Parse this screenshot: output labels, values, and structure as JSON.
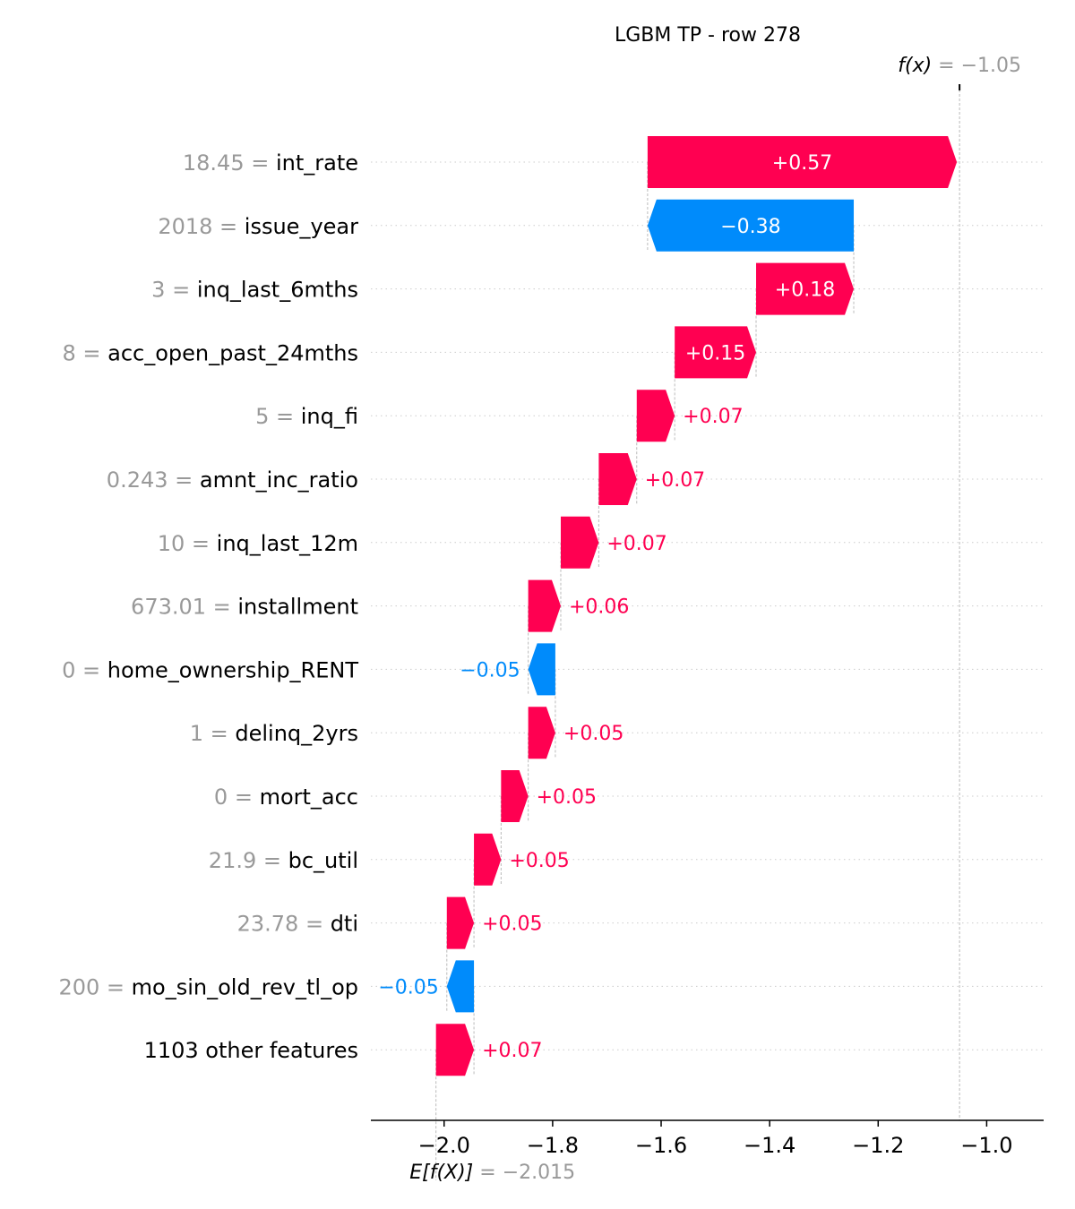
{
  "chart_data": {
    "type": "waterfall",
    "title": "LGBM TP - row 278",
    "base_value": -2.015,
    "base_label": {
      "prefix": "E[f(X)]",
      "value_text": " = −2.015"
    },
    "output_value": -1.05,
    "output_label": {
      "prefix": "f(x)",
      "value_text": " = −1.05"
    },
    "xlim": [
      -2.135,
      -0.895
    ],
    "xticks": [
      -2.0,
      -1.8,
      -1.6,
      -1.4,
      -1.2,
      -1.0
    ],
    "xtick_labels": [
      "−2.0",
      "−1.8",
      "−1.6",
      "−1.4",
      "−1.2",
      "−1.0"
    ],
    "colors": {
      "positive": "#ff0051",
      "negative": "#008bfb",
      "value_text": "#999999",
      "axis": "#000000",
      "grid": "#cccccc"
    },
    "features": [
      {
        "value": "18.45",
        "name": "int_rate",
        "contribution": 0.57,
        "label": "+0.57"
      },
      {
        "value": "2018",
        "name": "issue_year",
        "contribution": -0.38,
        "label": "−0.38"
      },
      {
        "value": "3",
        "name": "inq_last_6mths",
        "contribution": 0.18,
        "label": "+0.18"
      },
      {
        "value": "8",
        "name": "acc_open_past_24mths",
        "contribution": 0.15,
        "label": "+0.15"
      },
      {
        "value": "5",
        "name": "inq_fi",
        "contribution": 0.07,
        "label": "+0.07"
      },
      {
        "value": "0.243",
        "name": "amnt_inc_ratio",
        "contribution": 0.07,
        "label": "+0.07"
      },
      {
        "value": "10",
        "name": "inq_last_12m",
        "contribution": 0.07,
        "label": "+0.07"
      },
      {
        "value": "673.01",
        "name": "installment",
        "contribution": 0.06,
        "label": "+0.06"
      },
      {
        "value": "0",
        "name": "home_ownership_RENT",
        "contribution": -0.05,
        "label": "−0.05"
      },
      {
        "value": "1",
        "name": "delinq_2yrs",
        "contribution": 0.05,
        "label": "+0.05"
      },
      {
        "value": "0",
        "name": "mort_acc",
        "contribution": 0.05,
        "label": "+0.05"
      },
      {
        "value": "21.9",
        "name": "bc_util",
        "contribution": 0.05,
        "label": "+0.05"
      },
      {
        "value": "23.78",
        "name": "dti",
        "contribution": 0.05,
        "label": "+0.05"
      },
      {
        "value": "200",
        "name": "mo_sin_old_rev_tl_op",
        "contribution": -0.05,
        "label": "−0.05"
      },
      {
        "value": "",
        "name": "1103 other features",
        "contribution": 0.07,
        "label": "+0.07"
      }
    ]
  }
}
